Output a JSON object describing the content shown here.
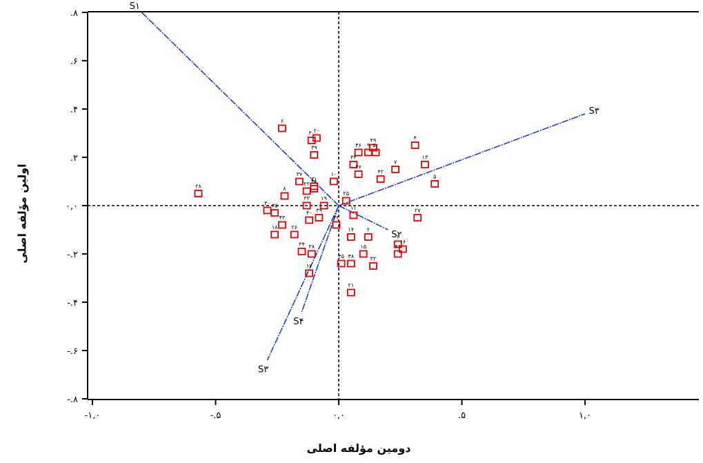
{
  "colors": {
    "points": "#e00000",
    "vectors": "#1a3fd0",
    "axes": "#000000"
  },
  "chart_data": {
    "type": "scatter",
    "xlabel": "دومین مؤلفه اصلی",
    "ylabel": "اولین مؤلفه اصلی",
    "xlim": [
      -1.0,
      1.0
    ],
    "ylim": [
      -0.8,
      0.8
    ],
    "grid": false,
    "reference_lines": {
      "x": 0.0,
      "y": 0.0
    },
    "x_ticks": [
      {
        "value": -1.0,
        "label": "-۱,۰"
      },
      {
        "value": -0.5,
        "label": "-.۵"
      },
      {
        "value": 0.0,
        "label": "۰,۰"
      },
      {
        "value": 0.5,
        "label": ".۵"
      },
      {
        "value": 1.0,
        "label": "۱,۰"
      }
    ],
    "y_ticks": [
      {
        "value": 0.8,
        "label": ".۸"
      },
      {
        "value": 0.6,
        "label": ".۶"
      },
      {
        "value": 0.4,
        "label": ".۴"
      },
      {
        "value": 0.2,
        "label": ".۲"
      },
      {
        "value": 0.0,
        "label": "۰,۰"
      },
      {
        "value": -0.2,
        "label": "-.۲"
      },
      {
        "value": -0.4,
        "label": "-.۴"
      },
      {
        "value": -0.6,
        "label": "-.۶"
      },
      {
        "value": -0.8,
        "label": "-.۸"
      }
    ],
    "points": [
      {
        "label": "۲۸",
        "x": -0.57,
        "y": 0.05
      },
      {
        "label": "۶",
        "x": -0.23,
        "y": 0.32
      },
      {
        "label": "۲۰",
        "x": -0.09,
        "y": 0.28
      },
      {
        "label": "۳۰",
        "x": -0.11,
        "y": 0.27
      },
      {
        "label": "۳۹",
        "x": -0.1,
        "y": 0.21
      },
      {
        "label": "۳۷",
        "x": -0.16,
        "y": 0.1
      },
      {
        "label": "۳۱",
        "x": -0.1,
        "y": 0.08
      },
      {
        "label": "۲۲",
        "x": -0.13,
        "y": 0.06
      },
      {
        "label": "۳۶",
        "x": -0.1,
        "y": 0.07
      },
      {
        "label": "۱۰",
        "x": -0.02,
        "y": 0.1
      },
      {
        "label": "۸",
        "x": -0.22,
        "y": 0.04
      },
      {
        "label": "۳۳",
        "x": -0.13,
        "y": 0.0
      },
      {
        "label": "۱۹",
        "x": -0.06,
        "y": 0.0
      },
      {
        "label": "۳۰",
        "x": -0.29,
        "y": -0.02
      },
      {
        "label": "۳۵",
        "x": -0.26,
        "y": -0.03
      },
      {
        "label": "۳۹",
        "x": -0.08,
        "y": -0.05
      },
      {
        "label": "۴۰",
        "x": -0.12,
        "y": -0.06
      },
      {
        "label": "۴۳",
        "x": -0.23,
        "y": -0.08
      },
      {
        "label": "۱۸",
        "x": -0.26,
        "y": -0.12
      },
      {
        "label": "۲۶",
        "x": -0.18,
        "y": -0.12
      },
      {
        "label": "۲۳",
        "x": -0.01,
        "y": -0.08
      },
      {
        "label": "۳۴",
        "x": -0.15,
        "y": -0.19
      },
      {
        "label": "۳۸",
        "x": -0.11,
        "y": -0.2
      },
      {
        "label": "۱۷",
        "x": -0.12,
        "y": -0.28
      },
      {
        "label": "۴۵",
        "x": 0.01,
        "y": -0.24
      },
      {
        "label": "۴۸",
        "x": 0.05,
        "y": -0.24
      },
      {
        "label": "۱۴",
        "x": 0.05,
        "y": -0.13
      },
      {
        "label": "۲",
        "x": 0.12,
        "y": -0.13
      },
      {
        "label": "۱۵",
        "x": 0.1,
        "y": -0.2
      },
      {
        "label": "۳۲",
        "x": 0.14,
        "y": -0.25
      },
      {
        "label": "۲۱",
        "x": 0.05,
        "y": -0.36
      },
      {
        "label": "۱۱",
        "x": 0.06,
        "y": -0.04
      },
      {
        "label": "۲۵",
        "x": 0.03,
        "y": 0.02
      },
      {
        "label": "۴۶",
        "x": 0.08,
        "y": 0.22
      },
      {
        "label": "۹",
        "x": 0.12,
        "y": 0.22
      },
      {
        "label": "۴۹",
        "x": 0.14,
        "y": 0.24
      },
      {
        "label": "۵۰",
        "x": 0.15,
        "y": 0.22
      },
      {
        "label": "۴۴",
        "x": 0.06,
        "y": 0.17
      },
      {
        "label": "۴۷",
        "x": 0.08,
        "y": 0.13
      },
      {
        "label": "۴۲",
        "x": 0.17,
        "y": 0.11
      },
      {
        "label": "۷",
        "x": 0.23,
        "y": 0.15
      },
      {
        "label": "۴",
        "x": 0.31,
        "y": 0.25
      },
      {
        "label": "۱۳",
        "x": 0.35,
        "y": 0.17
      },
      {
        "label": "۵",
        "x": 0.39,
        "y": 0.09
      },
      {
        "label": "۲۷",
        "x": 0.32,
        "y": -0.05
      },
      {
        "label": "۱",
        "x": 0.24,
        "y": -0.16
      },
      {
        "label": "۱۶",
        "x": 0.26,
        "y": -0.18
      },
      {
        "label": "۴۱",
        "x": 0.24,
        "y": -0.2
      }
    ],
    "vectors": [
      {
        "name": "S۱",
        "x": -0.8,
        "y": 0.8
      },
      {
        "name": "S۳",
        "x": 1.0,
        "y": 0.38
      },
      {
        "name": "S۲",
        "x": 0.2,
        "y": -0.1
      },
      {
        "name": "S۴",
        "x": -0.15,
        "y": -0.44
      },
      {
        "name": "S۳",
        "x": -0.29,
        "y": -0.64
      }
    ]
  }
}
